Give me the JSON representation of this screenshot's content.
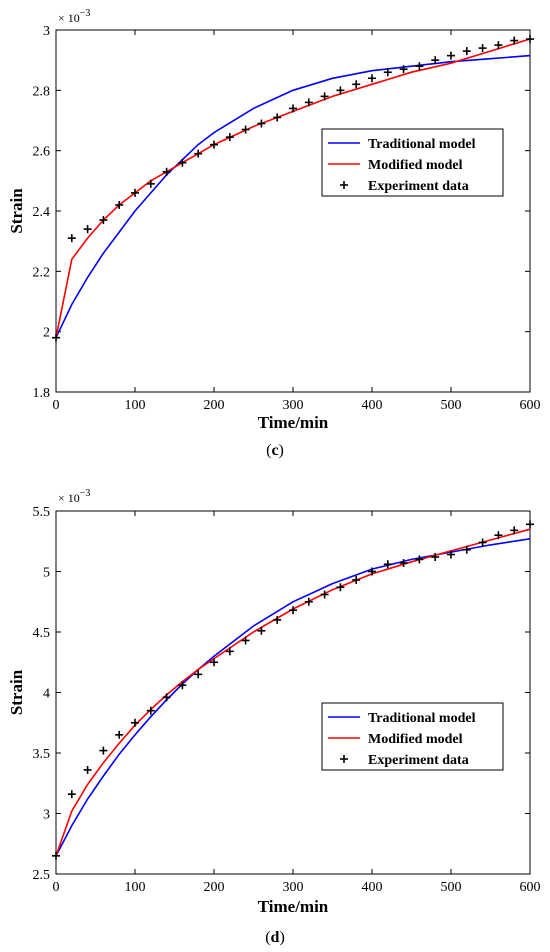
{
  "figures": [
    {
      "caption": {
        "open": "(",
        "letter": "c",
        "close": ")"
      },
      "exponent": "× 10",
      "exponent_power": "−3",
      "xlabel": "Time/min",
      "ylabel": "Strain",
      "xticks": [
        "0",
        "100",
        "200",
        "300",
        "400",
        "500",
        "600"
      ],
      "yticks": [
        "1.8",
        "2",
        "2.2",
        "2.4",
        "2.6",
        "2.8",
        "3"
      ],
      "legend": [
        "Traditional model",
        "Modified model",
        "Experiment data"
      ]
    },
    {
      "caption": {
        "open": "(",
        "letter": "d",
        "close": ")"
      },
      "exponent": "× 10",
      "exponent_power": "−3",
      "xlabel": "Time/min",
      "ylabel": "Strain",
      "xticks": [
        "0",
        "100",
        "200",
        "300",
        "400",
        "500",
        "600"
      ],
      "yticks": [
        "2.5",
        "3",
        "3.5",
        "4",
        "4.5",
        "5",
        "5.5"
      ],
      "legend": [
        "Traditional model",
        "Modified model",
        "Experiment data"
      ]
    }
  ],
  "colors": {
    "traditional": "#0000ff",
    "modified": "#ff0000",
    "experiment": "#000000"
  },
  "chart_data": [
    {
      "type": "line",
      "title": "",
      "xlabel": "Time/min",
      "ylabel": "Strain",
      "y_multiplier": "1e-3",
      "xlim": [
        0,
        600
      ],
      "ylim": [
        1.8,
        3.0
      ],
      "legend_position": "center-right",
      "series": [
        {
          "name": "Traditional model",
          "kind": "line",
          "color": "#0000ff",
          "x": [
            0,
            20,
            40,
            60,
            80,
            100,
            120,
            140,
            160,
            180,
            200,
            250,
            300,
            350,
            400,
            450,
            500,
            550,
            600
          ],
          "y": [
            1.98,
            2.09,
            2.18,
            2.26,
            2.33,
            2.4,
            2.46,
            2.52,
            2.57,
            2.62,
            2.66,
            2.74,
            2.8,
            2.84,
            2.865,
            2.88,
            2.895,
            2.905,
            2.915
          ]
        },
        {
          "name": "Modified model",
          "kind": "line",
          "color": "#ff0000",
          "x": [
            0,
            20,
            40,
            60,
            80,
            100,
            120,
            140,
            160,
            180,
            200,
            250,
            300,
            350,
            400,
            450,
            500,
            550,
            600
          ],
          "y": [
            1.98,
            2.24,
            2.31,
            2.37,
            2.42,
            2.46,
            2.5,
            2.53,
            2.56,
            2.59,
            2.62,
            2.68,
            2.73,
            2.78,
            2.82,
            2.86,
            2.89,
            2.93,
            2.97
          ]
        },
        {
          "name": "Experiment data",
          "kind": "markers",
          "color": "#000000",
          "x": [
            0,
            20,
            40,
            60,
            80,
            100,
            120,
            140,
            160,
            180,
            200,
            220,
            240,
            260,
            280,
            300,
            320,
            340,
            360,
            380,
            400,
            420,
            440,
            460,
            480,
            500,
            520,
            540,
            560,
            580,
            600
          ],
          "y": [
            1.98,
            2.31,
            2.34,
            2.37,
            2.42,
            2.46,
            2.49,
            2.53,
            2.56,
            2.59,
            2.62,
            2.645,
            2.67,
            2.69,
            2.71,
            2.74,
            2.76,
            2.78,
            2.8,
            2.82,
            2.84,
            2.86,
            2.87,
            2.88,
            2.9,
            2.915,
            2.93,
            2.94,
            2.95,
            2.965,
            2.97
          ]
        }
      ]
    },
    {
      "type": "line",
      "title": "",
      "xlabel": "Time/min",
      "ylabel": "Strain",
      "y_multiplier": "1e-3",
      "xlim": [
        0,
        600
      ],
      "ylim": [
        2.5,
        5.5
      ],
      "legend_position": "lower-right",
      "series": [
        {
          "name": "Traditional model",
          "kind": "line",
          "color": "#0000ff",
          "x": [
            0,
            20,
            40,
            60,
            80,
            100,
            120,
            140,
            160,
            180,
            200,
            250,
            300,
            350,
            400,
            450,
            500,
            550,
            600
          ],
          "y": [
            2.65,
            2.9,
            3.12,
            3.31,
            3.49,
            3.65,
            3.8,
            3.94,
            4.07,
            4.19,
            4.3,
            4.55,
            4.75,
            4.9,
            5.02,
            5.1,
            5.16,
            5.22,
            5.27
          ]
        },
        {
          "name": "Modified model",
          "kind": "line",
          "color": "#ff0000",
          "x": [
            0,
            20,
            40,
            60,
            80,
            100,
            120,
            140,
            160,
            180,
            200,
            250,
            300,
            350,
            400,
            450,
            500,
            550,
            600
          ],
          "y": [
            2.65,
            3.02,
            3.24,
            3.42,
            3.58,
            3.73,
            3.86,
            3.98,
            4.09,
            4.19,
            4.28,
            4.5,
            4.69,
            4.85,
            4.98,
            5.08,
            5.17,
            5.26,
            5.35
          ]
        },
        {
          "name": "Experiment data",
          "kind": "markers",
          "color": "#000000",
          "x": [
            0,
            20,
            40,
            60,
            80,
            100,
            120,
            140,
            160,
            180,
            200,
            220,
            240,
            260,
            280,
            300,
            320,
            340,
            360,
            380,
            400,
            420,
            440,
            460,
            480,
            500,
            520,
            540,
            560,
            580,
            600
          ],
          "y": [
            2.65,
            3.16,
            3.36,
            3.52,
            3.65,
            3.75,
            3.85,
            3.96,
            4.06,
            4.15,
            4.25,
            4.34,
            4.43,
            4.51,
            4.6,
            4.68,
            4.75,
            4.81,
            4.87,
            4.93,
            5.0,
            5.06,
            5.07,
            5.1,
            5.12,
            5.14,
            5.18,
            5.24,
            5.3,
            5.34,
            5.39
          ]
        }
      ]
    }
  ]
}
